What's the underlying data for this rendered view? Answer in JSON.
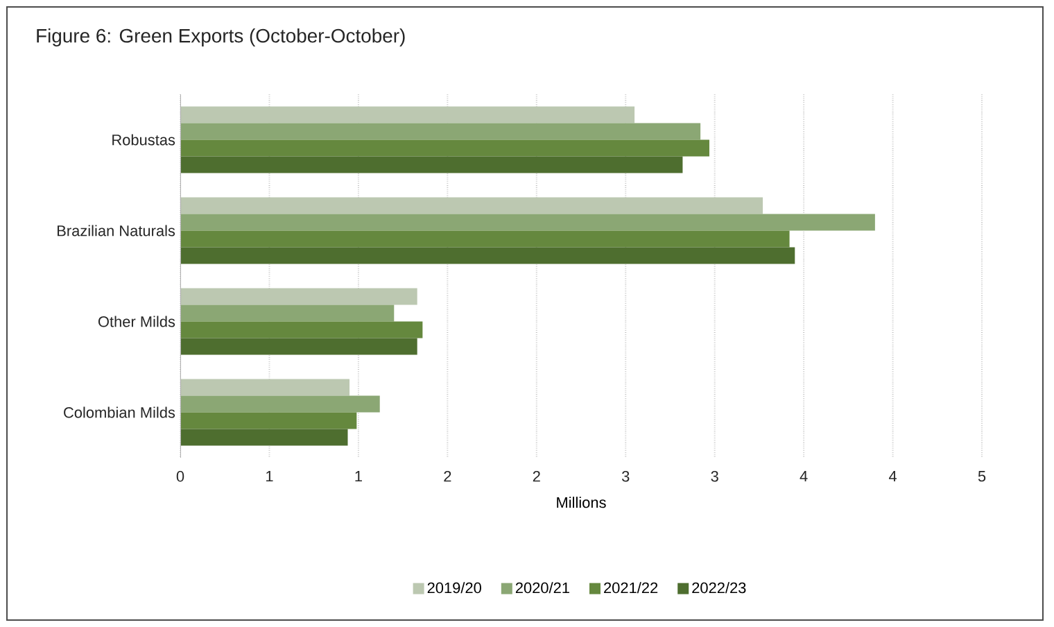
{
  "chart_data": {
    "type": "bar",
    "orientation": "horizontal",
    "title": "Figure 6: Green Exports (October-October)",
    "xlabel": "Millions",
    "categories": [
      "Robustas",
      "Brazilian Naturals",
      "Other Milds",
      "Colombian Milds"
    ],
    "series": [
      {
        "name": "2019/20",
        "color": "#bcc8b1",
        "values": [
          2.55,
          3.27,
          1.33,
          0.95
        ]
      },
      {
        "name": "2020/21",
        "color": "#8ba774",
        "values": [
          2.92,
          3.9,
          1.2,
          1.12
        ]
      },
      {
        "name": "2021/22",
        "color": "#65883e",
        "values": [
          2.97,
          3.42,
          1.36,
          0.99
        ]
      },
      {
        "name": "2022/23",
        "color": "#4e6e2f",
        "values": [
          2.82,
          3.45,
          1.33,
          0.94
        ]
      }
    ],
    "xlim": [
      0,
      4.5
    ],
    "xticks": [
      0,
      {
        "value": 0.5,
        "label": "1"
      },
      1,
      {
        "value": 1.5,
        "label": "2"
      },
      2,
      {
        "value": 2.5,
        "label": "3"
      },
      3,
      {
        "value": 3.5,
        "label": "4"
      },
      4,
      {
        "value": 4.5,
        "label": "5"
      }
    ],
    "grid": "x",
    "legend": "bottom"
  }
}
